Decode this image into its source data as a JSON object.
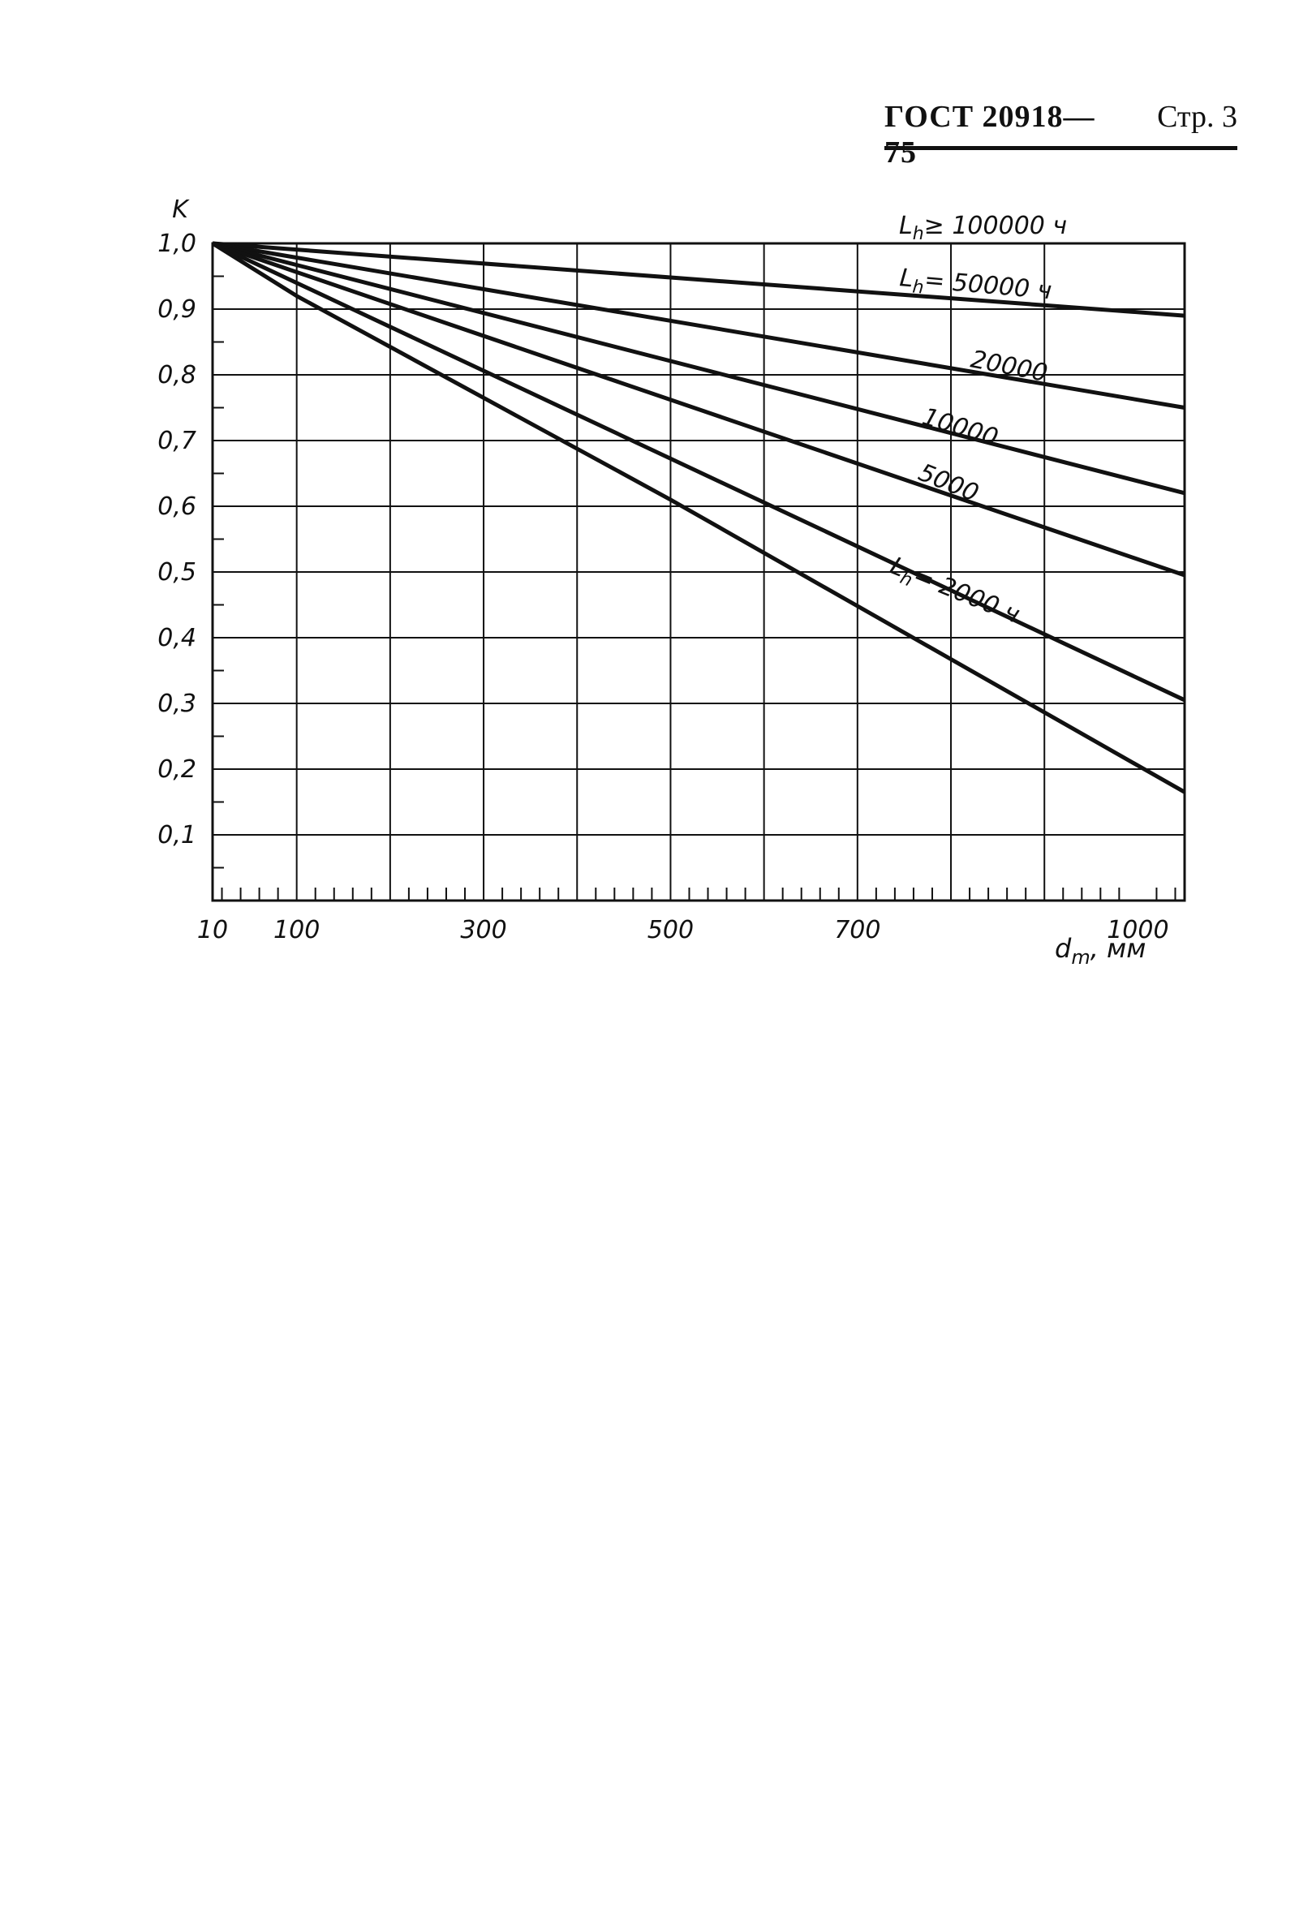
{
  "header": {
    "standard": "ГОСТ 20918—75",
    "page": "Стр. 3"
  },
  "chart_data": {
    "type": "line",
    "xlabel": "d",
    "xlabel_sub": "m",
    "xlabel_unit": ", мм",
    "ylabel": "K",
    "xlim": [
      10,
      1050
    ],
    "ylim": [
      0,
      1.0
    ],
    "x_ticks": [
      {
        "value": 10,
        "label": "10"
      },
      {
        "value": 100,
        "label": "100"
      },
      {
        "value": 300,
        "label": "300"
      },
      {
        "value": 500,
        "label": "500"
      },
      {
        "value": 700,
        "label": "700"
      },
      {
        "value": 1000,
        "label": "1000"
      }
    ],
    "y_ticks": [
      {
        "value": 0.1,
        "label": "0,1"
      },
      {
        "value": 0.2,
        "label": "0,2"
      },
      {
        "value": 0.3,
        "label": "0,3"
      },
      {
        "value": 0.4,
        "label": "0,4"
      },
      {
        "value": 0.5,
        "label": "0,5"
      },
      {
        "value": 0.6,
        "label": "0,6"
      },
      {
        "value": 0.7,
        "label": "0,7"
      },
      {
        "value": 0.8,
        "label": "0,8"
      },
      {
        "value": 0.9,
        "label": "0,9"
      },
      {
        "value": 1.0,
        "label": "1,0"
      }
    ],
    "x_gridlines": [
      100,
      200,
      300,
      400,
      500,
      600,
      700,
      800,
      900
    ],
    "grid": true,
    "series": [
      {
        "label": "L",
        "label_sub": "h",
        "label_rest": "≥ 100000 ч",
        "x": [
          10,
          1050
        ],
        "y": [
          1.0,
          0.89
        ]
      },
      {
        "label": "L",
        "label_sub": "h",
        "label_rest": "= 50000 ч",
        "x": [
          10,
          1050
        ],
        "y": [
          1.0,
          0.75
        ]
      },
      {
        "label": "20000",
        "x": [
          10,
          1050
        ],
        "y": [
          1.0,
          0.62
        ]
      },
      {
        "label": "10000",
        "x": [
          10,
          1050
        ],
        "y": [
          1.0,
          0.495
        ]
      },
      {
        "label": "5000",
        "x": [
          10,
          1050
        ],
        "y": [
          1.0,
          0.305
        ]
      },
      {
        "label": "L",
        "label_sub": "h",
        "label_rest": "= 2000 ч",
        "x": [
          10,
          100,
          500,
          1050
        ],
        "y": [
          1.0,
          0.92,
          0.61,
          0.165
        ]
      }
    ]
  }
}
